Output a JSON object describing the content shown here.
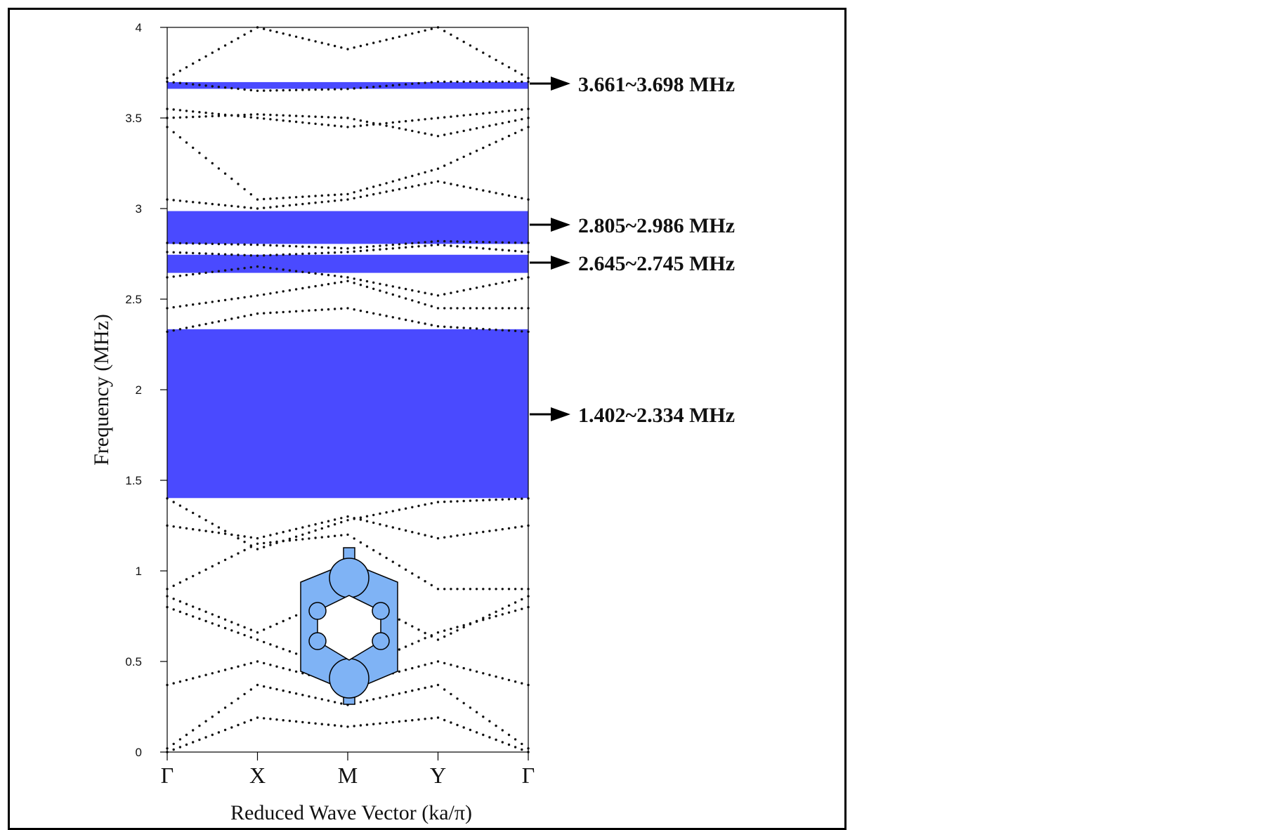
{
  "chart_data": {
    "type": "scatter",
    "subtype": "band-structure",
    "xlabel": "Reduced Wave Vector (ka/π)",
    "ylabel": "Frequency (MHz)",
    "ylim": [
      0,
      4
    ],
    "y_ticks": [
      0,
      0.5,
      1,
      1.5,
      2,
      2.5,
      3,
      3.5,
      4
    ],
    "y_tick_labels": [
      "0",
      "0.5",
      "1",
      "1.5",
      "2",
      "2.5",
      "3",
      "3.5",
      "4"
    ],
    "x_ticks": [
      "Γ",
      "X",
      "M",
      "Y",
      "Γ"
    ],
    "grid": false,
    "band_color": "#4a4aff",
    "inset_color": "#7fb3f5",
    "band_gaps": [
      {
        "low": 3.661,
        "high": 3.698,
        "label": "3.661~3.698 MHz"
      },
      {
        "low": 2.805,
        "high": 2.986,
        "label": "2.805~2.986 MHz"
      },
      {
        "low": 2.645,
        "high": 2.745,
        "label": "2.645~2.745 MHz"
      },
      {
        "low": 1.402,
        "high": 2.334,
        "label": "1.402~2.334 MHz"
      }
    ],
    "bands": [
      [
        0.0,
        0.19,
        0.14,
        0.19,
        0.0
      ],
      [
        0.02,
        0.37,
        0.26,
        0.37,
        0.02
      ],
      [
        0.37,
        0.5,
        0.37,
        0.5,
        0.37
      ],
      [
        0.8,
        0.62,
        0.44,
        0.66,
        0.8
      ],
      [
        0.86,
        0.66,
        0.88,
        0.62,
        0.86
      ],
      [
        0.9,
        1.15,
        1.2,
        0.9,
        0.9
      ],
      [
        1.25,
        1.18,
        1.3,
        1.18,
        1.25
      ],
      [
        1.4,
        1.12,
        1.28,
        1.38,
        1.4
      ],
      [
        2.32,
        2.42,
        2.45,
        2.35,
        2.32
      ],
      [
        2.45,
        2.52,
        2.6,
        2.45,
        2.45
      ],
      [
        2.62,
        2.68,
        2.62,
        2.52,
        2.62
      ],
      [
        2.76,
        2.74,
        2.76,
        2.8,
        2.76
      ],
      [
        2.81,
        2.8,
        2.78,
        2.82,
        2.81
      ],
      [
        3.05,
        3.0,
        3.05,
        3.15,
        3.05
      ],
      [
        3.45,
        3.05,
        3.08,
        3.22,
        3.45
      ],
      [
        3.5,
        3.52,
        3.5,
        3.4,
        3.5
      ],
      [
        3.55,
        3.5,
        3.45,
        3.5,
        3.55
      ],
      [
        3.7,
        3.65,
        3.66,
        3.7,
        3.7
      ],
      [
        3.72,
        4.0,
        3.88,
        4.0,
        3.72
      ]
    ]
  }
}
